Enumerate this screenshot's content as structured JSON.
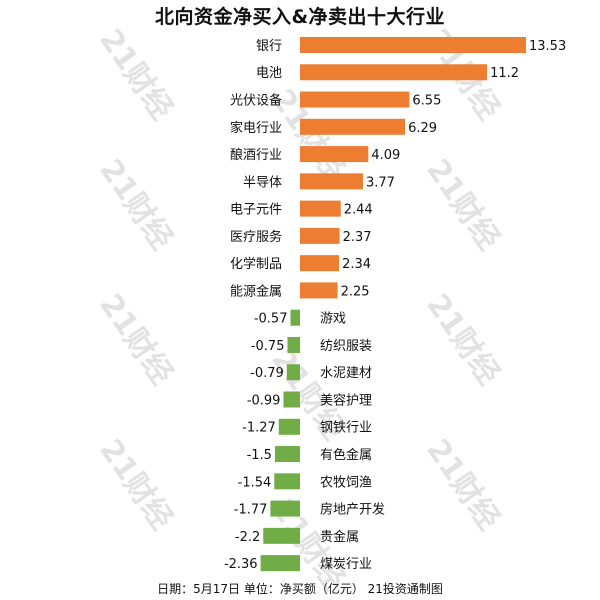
{
  "title": "北向资金净买入&净卖出十大行业",
  "footer": "日期：5月17日 单位：净买额（亿元） 21投资通制图",
  "watermark": "21财经",
  "colors": {
    "positive": "#ed7d31",
    "negative": "#70ad47",
    "text": "#111111",
    "watermark": "#d9d9d9"
  },
  "chart_data": {
    "type": "bar",
    "orientation": "horizontal",
    "title": "北向资金净买入&净卖出十大行业",
    "categories": [
      "银行",
      "电池",
      "光伏设备",
      "家电行业",
      "酿酒行业",
      "半导体",
      "电子元件",
      "医疗服务",
      "化学制品",
      "能源金属",
      "游戏",
      "纺织服装",
      "水泥建材",
      "美容护理",
      "钢铁行业",
      "有色金属",
      "农牧饲渔",
      "房地产开发",
      "贵金属",
      "煤炭行业"
    ],
    "values": [
      13.53,
      11.2,
      6.55,
      6.29,
      4.09,
      3.77,
      2.44,
      2.37,
      2.34,
      2.25,
      -0.57,
      -0.75,
      -0.79,
      -0.99,
      -1.27,
      -1.5,
      -1.54,
      -1.77,
      -2.2,
      -2.36
    ],
    "value_labels": [
      "13.53",
      "11.2",
      "6.55",
      "6.29",
      "4.09",
      "3.77",
      "2.44",
      "2.37",
      "2.34",
      "2.25",
      "-0.57",
      "-0.75",
      "-0.79",
      "-0.99",
      "-1.27",
      "-1.5",
      "-1.54",
      "-1.77",
      "-2.2",
      "-2.36"
    ],
    "xlabel": "",
    "ylabel": "",
    "xlim": [
      -2.36,
      13.53
    ],
    "grid": false,
    "legend": "none"
  }
}
